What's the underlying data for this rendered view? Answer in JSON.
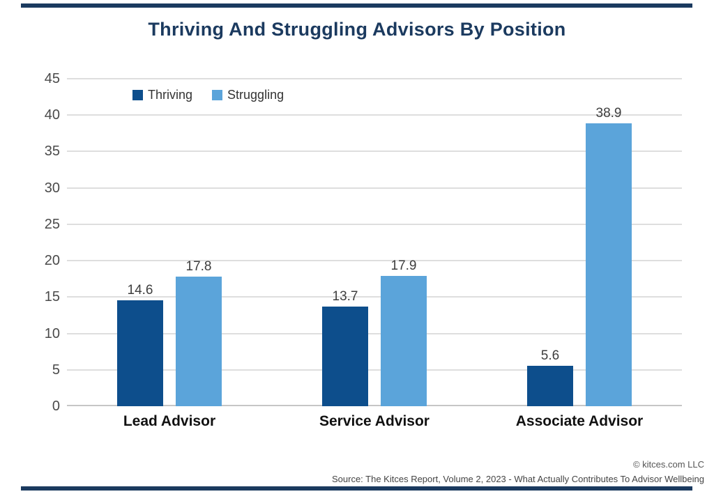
{
  "chart_data": {
    "type": "bar",
    "title": "Thriving And Struggling Advisors By Position",
    "categories": [
      "Lead Advisor",
      "Service Advisor",
      "Associate Advisor"
    ],
    "series": [
      {
        "name": "Thriving",
        "color": "#0d4e8c",
        "values": [
          14.6,
          13.7,
          5.6
        ]
      },
      {
        "name": "Struggling",
        "color": "#5ba4da",
        "values": [
          17.8,
          17.9,
          38.9
        ]
      }
    ],
    "ylim": [
      0,
      45
    ],
    "ytick_step": 5,
    "grid": true,
    "legend_position": "top-left",
    "value_labels": true,
    "xlabel": "",
    "ylabel": ""
  },
  "footer": {
    "copyright": "© kitces.com LLC",
    "source": "Source: The Kitces Report, Volume 2, 2023 - What Actually Contributes To Advisor Wellbeing"
  },
  "colors": {
    "title_text": "#1b3a5f",
    "page_rule": "#1b3a5f",
    "gridline": "#dedede",
    "axis_tick_text": "#4a4a4a",
    "value_label_text": "#3d3d3d",
    "category_label_text": "#111111",
    "footer_text": "#4a4a4a",
    "background": "#ffffff"
  }
}
